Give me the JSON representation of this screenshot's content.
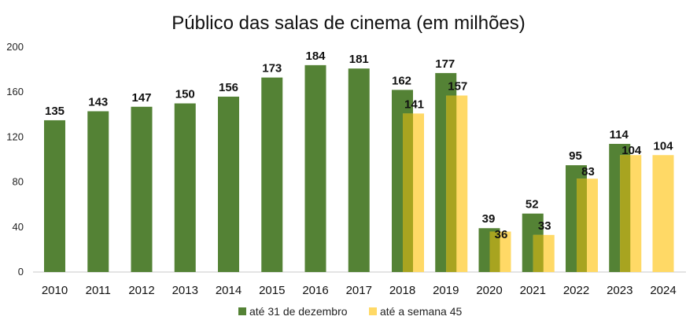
{
  "chart_data": {
    "type": "bar",
    "title": "Público das salas de cinema (em milhões)",
    "xlabel": "",
    "ylabel": "",
    "ylim": [
      0,
      200
    ],
    "yticks": [
      0,
      40,
      80,
      120,
      160,
      200
    ],
    "grid": false,
    "legend_position": "bottom",
    "categories": [
      "2010",
      "2011",
      "2012",
      "2013",
      "2014",
      "2015",
      "2016",
      "2017",
      "2018",
      "2019",
      "2020",
      "2021",
      "2022",
      "2023",
      "2024"
    ],
    "series": [
      {
        "name": "até 31 de dezembro",
        "color": "#548235",
        "values": [
          135,
          143,
          147,
          150,
          156,
          173,
          184,
          181,
          162,
          177,
          39,
          52,
          95,
          114,
          null
        ]
      },
      {
        "name": "até a semana 45",
        "color": "#FFD966",
        "values": [
          null,
          null,
          null,
          null,
          null,
          null,
          null,
          null,
          141,
          157,
          36,
          33,
          83,
          104,
          104
        ]
      }
    ],
    "overlap_color": "#A8A420"
  }
}
